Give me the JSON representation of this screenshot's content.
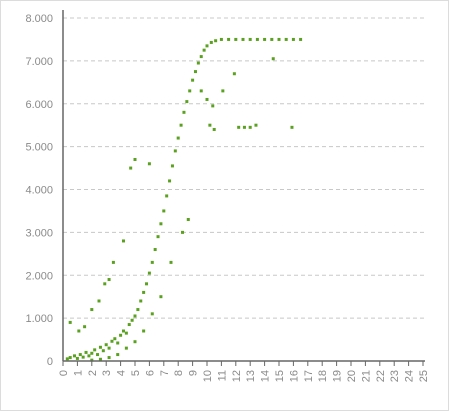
{
  "chart_data": {
    "type": "scatter",
    "title": "",
    "xlabel": "",
    "ylabel": "",
    "xlim": [
      0,
      25
    ],
    "ylim": [
      0,
      8000
    ],
    "grid": {
      "y": true,
      "x": false,
      "style": "dashed"
    },
    "legend": "none",
    "marker_color": "#5aa11f",
    "x_ticks": [
      {
        "value": 0,
        "label": "0"
      },
      {
        "value": 1,
        "label": "1"
      },
      {
        "value": 2,
        "label": "2"
      },
      {
        "value": 3,
        "label": "3"
      },
      {
        "value": 4,
        "label": "4"
      },
      {
        "value": 5,
        "label": "5"
      },
      {
        "value": 6,
        "label": "6"
      },
      {
        "value": 7,
        "label": "7"
      },
      {
        "value": 8,
        "label": "8"
      },
      {
        "value": 9,
        "label": "9"
      },
      {
        "value": 10,
        "label": "10"
      },
      {
        "value": 11,
        "label": "11"
      },
      {
        "value": 12,
        "label": "12"
      },
      {
        "value": 13,
        "label": "13"
      },
      {
        "value": 14,
        "label": "14"
      },
      {
        "value": 15,
        "label": "15"
      },
      {
        "value": 16,
        "label": "16"
      },
      {
        "value": 17,
        "label": "17"
      },
      {
        "value": 18,
        "label": "18"
      },
      {
        "value": 19,
        "label": "19"
      },
      {
        "value": 20,
        "label": "20"
      },
      {
        "value": 21,
        "label": "21"
      },
      {
        "value": 22,
        "label": "22"
      },
      {
        "value": 23,
        "label": "23"
      },
      {
        "value": 24,
        "label": "24"
      },
      {
        "value": 25,
        "label": "25"
      }
    ],
    "y_ticks": [
      {
        "value": 0,
        "label": "0"
      },
      {
        "value": 1000,
        "label": "1.000"
      },
      {
        "value": 2000,
        "label": "2.000"
      },
      {
        "value": 3000,
        "label": "3.000"
      },
      {
        "value": 4000,
        "label": "4.000"
      },
      {
        "value": 5000,
        "label": "5.000"
      },
      {
        "value": 6000,
        "label": "6.000"
      },
      {
        "value": 7000,
        "label": "7.000"
      },
      {
        "value": 8000,
        "label": "8.000"
      }
    ],
    "series": [
      {
        "points": [
          [
            0.3,
            50
          ],
          [
            0.5,
            80
          ],
          [
            0.8,
            120
          ],
          [
            1.0,
            60
          ],
          [
            1.2,
            150
          ],
          [
            1.4,
            90
          ],
          [
            1.6,
            200
          ],
          [
            1.8,
            120
          ],
          [
            2.0,
            180
          ],
          [
            2.2,
            260
          ],
          [
            2.4,
            150
          ],
          [
            2.6,
            320
          ],
          [
            2.8,
            240
          ],
          [
            3.0,
            380
          ],
          [
            3.2,
            300
          ],
          [
            3.4,
            460
          ],
          [
            3.6,
            520
          ],
          [
            3.8,
            420
          ],
          [
            4.0,
            600
          ],
          [
            4.2,
            700
          ],
          [
            4.4,
            650
          ],
          [
            4.6,
            850
          ],
          [
            4.8,
            950
          ],
          [
            5.0,
            1050
          ],
          [
            5.2,
            1200
          ],
          [
            5.4,
            1400
          ],
          [
            5.6,
            1600
          ],
          [
            5.8,
            1800
          ],
          [
            6.0,
            2050
          ],
          [
            6.2,
            2300
          ],
          [
            6.4,
            2600
          ],
          [
            6.6,
            2900
          ],
          [
            6.8,
            3200
          ],
          [
            7.0,
            3500
          ],
          [
            7.2,
            3850
          ],
          [
            7.4,
            4200
          ],
          [
            7.6,
            4550
          ],
          [
            7.8,
            4900
          ],
          [
            8.0,
            5200
          ],
          [
            8.2,
            5500
          ],
          [
            8.4,
            5800
          ],
          [
            8.6,
            6050
          ],
          [
            8.8,
            6300
          ],
          [
            9.0,
            6550
          ],
          [
            9.2,
            6750
          ],
          [
            9.4,
            6950
          ],
          [
            9.6,
            7100
          ],
          [
            9.8,
            7250
          ],
          [
            10.0,
            7350
          ],
          [
            10.3,
            7430
          ],
          [
            10.6,
            7470
          ],
          [
            11.0,
            7500
          ],
          [
            11.5,
            7500
          ],
          [
            12.0,
            7500
          ],
          [
            12.5,
            7500
          ],
          [
            13.0,
            7500
          ],
          [
            13.5,
            7500
          ],
          [
            14.0,
            7500
          ],
          [
            14.5,
            7500
          ],
          [
            15.0,
            7500
          ],
          [
            15.5,
            7500
          ],
          [
            16.0,
            7500
          ],
          [
            16.5,
            7500
          ],
          [
            14.6,
            7050
          ],
          [
            11.9,
            6700
          ],
          [
            10.2,
            5500
          ],
          [
            10.5,
            5400
          ],
          [
            12.2,
            5450
          ],
          [
            12.6,
            5450
          ],
          [
            13.0,
            5450
          ],
          [
            13.4,
            5500
          ],
          [
            15.9,
            5450
          ],
          [
            10.4,
            5950
          ],
          [
            10.0,
            6100
          ],
          [
            9.6,
            6300
          ],
          [
            11.1,
            6300
          ],
          [
            5.0,
            4700
          ],
          [
            4.7,
            4500
          ],
          [
            6.0,
            4600
          ],
          [
            3.2,
            1900
          ],
          [
            2.9,
            1800
          ],
          [
            2.0,
            1200
          ],
          [
            1.1,
            700
          ],
          [
            0.5,
            900
          ],
          [
            1.5,
            800
          ],
          [
            2.5,
            1400
          ],
          [
            3.5,
            2300
          ],
          [
            4.2,
            2800
          ],
          [
            8.7,
            3300
          ],
          [
            8.3,
            3000
          ],
          [
            7.5,
            2300
          ],
          [
            6.8,
            1500
          ],
          [
            6.2,
            1100
          ],
          [
            5.6,
            700
          ],
          [
            5.0,
            450
          ],
          [
            4.4,
            300
          ],
          [
            3.8,
            150
          ],
          [
            3.2,
            80
          ],
          [
            2.6,
            40
          ],
          [
            2.0,
            20
          ]
        ]
      }
    ]
  }
}
